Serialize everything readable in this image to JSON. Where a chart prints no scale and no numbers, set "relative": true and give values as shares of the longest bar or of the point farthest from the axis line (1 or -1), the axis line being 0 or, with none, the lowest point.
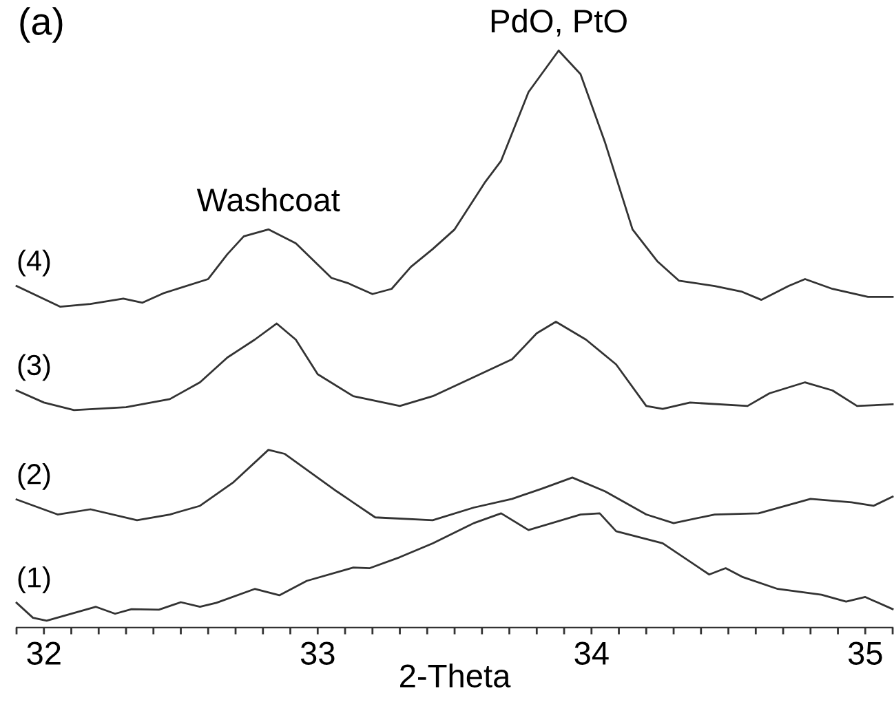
{
  "chart_data": {
    "type": "line",
    "relative": true,
    "xlabel": "2-Theta",
    "annotations": [
      "(a)",
      {
        "text": "Washcoat",
        "x": 32.82,
        "y": 0.69
      },
      {
        "text": "PdO, PtO",
        "x": 33.88,
        "y": 1.0
      }
    ],
    "xlim": [
      31.9,
      35.1
    ],
    "xticks": [
      {
        "value": 31.9,
        "label": null
      },
      32,
      {
        "value": 32.1,
        "label": null
      },
      {
        "value": 32.2,
        "label": null
      },
      {
        "value": 32.3,
        "label": null
      },
      {
        "value": 32.4,
        "label": null
      },
      {
        "value": 32.5,
        "label": null
      },
      {
        "value": 32.6,
        "label": null
      },
      {
        "value": 32.7,
        "label": null
      },
      {
        "value": 32.8,
        "label": null
      },
      {
        "value": 32.9,
        "label": null
      },
      33,
      {
        "value": 33.1,
        "label": null
      },
      {
        "value": 33.2,
        "label": null
      },
      {
        "value": 33.3,
        "label": null
      },
      {
        "value": 33.4,
        "label": null
      },
      {
        "value": 33.5,
        "label": null
      },
      {
        "value": 33.6,
        "label": null
      },
      {
        "value": 33.7,
        "label": null
      },
      {
        "value": 33.8,
        "label": null
      },
      {
        "value": 33.9,
        "label": null
      },
      34,
      {
        "value": 34.1,
        "label": null
      },
      {
        "value": 34.2,
        "label": null
      },
      {
        "value": 34.3,
        "label": null
      },
      {
        "value": 34.4,
        "label": null
      },
      {
        "value": 34.5,
        "label": null
      },
      {
        "value": 34.6,
        "label": null
      },
      {
        "value": 34.7,
        "label": null
      },
      {
        "value": 34.8,
        "label": null
      },
      {
        "value": 34.9,
        "label": null
      },
      35,
      {
        "value": 35.1,
        "label": null
      }
    ],
    "grid": false,
    "legend": false,
    "marker": "none",
    "line_style": "solid",
    "series": [
      {
        "name": "(4)",
        "color": "#333333",
        "x": [
          31.9,
          32.06,
          32.17,
          32.29,
          32.36,
          32.44,
          32.6,
          32.67,
          32.73,
          32.82,
          32.92,
          33.05,
          33.11,
          33.2,
          33.27,
          33.34,
          33.42,
          33.5,
          33.61,
          33.67,
          33.77,
          33.88,
          33.96,
          34.05,
          34.15,
          34.24,
          34.32,
          34.45,
          34.55,
          34.62,
          34.72,
          34.78,
          34.88,
          35.01,
          35.1
        ],
        "values": [
          0.592,
          0.556,
          0.561,
          0.57,
          0.563,
          0.58,
          0.604,
          0.647,
          0.678,
          0.69,
          0.666,
          0.606,
          0.597,
          0.578,
          0.587,
          0.625,
          0.656,
          0.69,
          0.771,
          0.809,
          0.928,
          1.0,
          0.959,
          0.84,
          0.69,
          0.635,
          0.601,
          0.592,
          0.582,
          0.568,
          0.592,
          0.604,
          0.587,
          0.573,
          0.573
        ]
      },
      {
        "name": "(3)",
        "color": "#333333",
        "x": [
          31.9,
          32.0,
          32.11,
          32.3,
          32.46,
          32.57,
          32.67,
          32.77,
          32.85,
          32.92,
          33.0,
          33.13,
          33.3,
          33.42,
          33.57,
          33.71,
          33.8,
          33.87,
          33.98,
          34.09,
          34.2,
          34.26,
          34.36,
          34.57,
          34.65,
          34.78,
          34.88,
          34.97,
          35.1
        ],
        "values": [
          0.411,
          0.39,
          0.377,
          0.382,
          0.396,
          0.425,
          0.468,
          0.499,
          0.527,
          0.499,
          0.439,
          0.401,
          0.384,
          0.401,
          0.434,
          0.465,
          0.51,
          0.53,
          0.499,
          0.456,
          0.384,
          0.379,
          0.39,
          0.384,
          0.406,
          0.425,
          0.411,
          0.384,
          0.387
        ]
      },
      {
        "name": "(2)",
        "color": "#333333",
        "x": [
          31.9,
          32.05,
          32.17,
          32.34,
          32.46,
          32.57,
          32.69,
          32.82,
          32.88,
          33.07,
          33.21,
          33.42,
          33.57,
          33.71,
          33.82,
          33.93,
          34.05,
          34.2,
          34.3,
          34.45,
          34.61,
          34.8,
          34.95,
          35.03,
          35.1
        ],
        "values": [
          0.222,
          0.196,
          0.205,
          0.186,
          0.196,
          0.211,
          0.251,
          0.308,
          0.301,
          0.236,
          0.191,
          0.186,
          0.208,
          0.223,
          0.241,
          0.26,
          0.236,
          0.196,
          0.181,
          0.196,
          0.198,
          0.223,
          0.217,
          0.211,
          0.227
        ]
      },
      {
        "name": "(1)",
        "color": "#333333",
        "x": [
          31.9,
          31.96,
          32.01,
          32.19,
          32.26,
          32.32,
          32.42,
          32.5,
          32.57,
          32.63,
          32.77,
          32.86,
          32.96,
          33.13,
          33.19,
          33.3,
          33.42,
          33.57,
          33.67,
          33.77,
          33.96,
          34.03,
          34.09,
          34.26,
          34.43,
          34.49,
          34.55,
          34.68,
          34.84,
          34.93,
          35.0,
          35.1
        ],
        "values": [
          0.043,
          0.017,
          0.012,
          0.036,
          0.024,
          0.032,
          0.031,
          0.044,
          0.036,
          0.043,
          0.067,
          0.056,
          0.081,
          0.104,
          0.103,
          0.122,
          0.146,
          0.181,
          0.198,
          0.169,
          0.196,
          0.198,
          0.167,
          0.146,
          0.092,
          0.103,
          0.088,
          0.067,
          0.057,
          0.045,
          0.053,
          0.032
        ]
      }
    ]
  }
}
